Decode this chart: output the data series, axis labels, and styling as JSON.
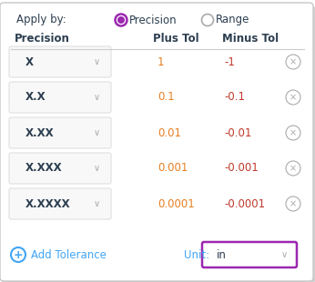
{
  "bg_color": "#ffffff",
  "border_color": "#c8c8c8",
  "apply_by_label": "Apply by:",
  "precision_radio_label": "Precision",
  "range_radio_label": "Range",
  "col_headers": [
    "Precision",
    "Plus Tol",
    "Minus Tol"
  ],
  "rows": [
    {
      "precision": "X",
      "plus": "1",
      "minus": "-1"
    },
    {
      "precision": "X.X",
      "plus": "0.1",
      "minus": "-0.1"
    },
    {
      "precision": "X.XX",
      "plus": "0.01",
      "minus": "-0.01"
    },
    {
      "precision": "X.XXX",
      "plus": "0.001",
      "minus": "-0.001"
    },
    {
      "precision": "X.XXXX",
      "plus": "0.0001",
      "minus": "-0.0001"
    }
  ],
  "add_tolerance_label": "Add Tolerance",
  "unit_label": "Unit:",
  "unit_value": "in",
  "purple_color": "#9c27b0",
  "blue_color": "#42a5f5",
  "orange_color": "#e67e22",
  "magenta_color": "#c0392b",
  "text_dark": "#2c3e50",
  "text_gray": "#aaaaaa",
  "header_color": "#2c3e50",
  "row_box_color": "#f8f8f8",
  "row_box_border": "#e0e0e0",
  "unit_box_border": "#9c27b0",
  "divider_color": "#cccccc",
  "shadow_color": "#d0d0d0"
}
